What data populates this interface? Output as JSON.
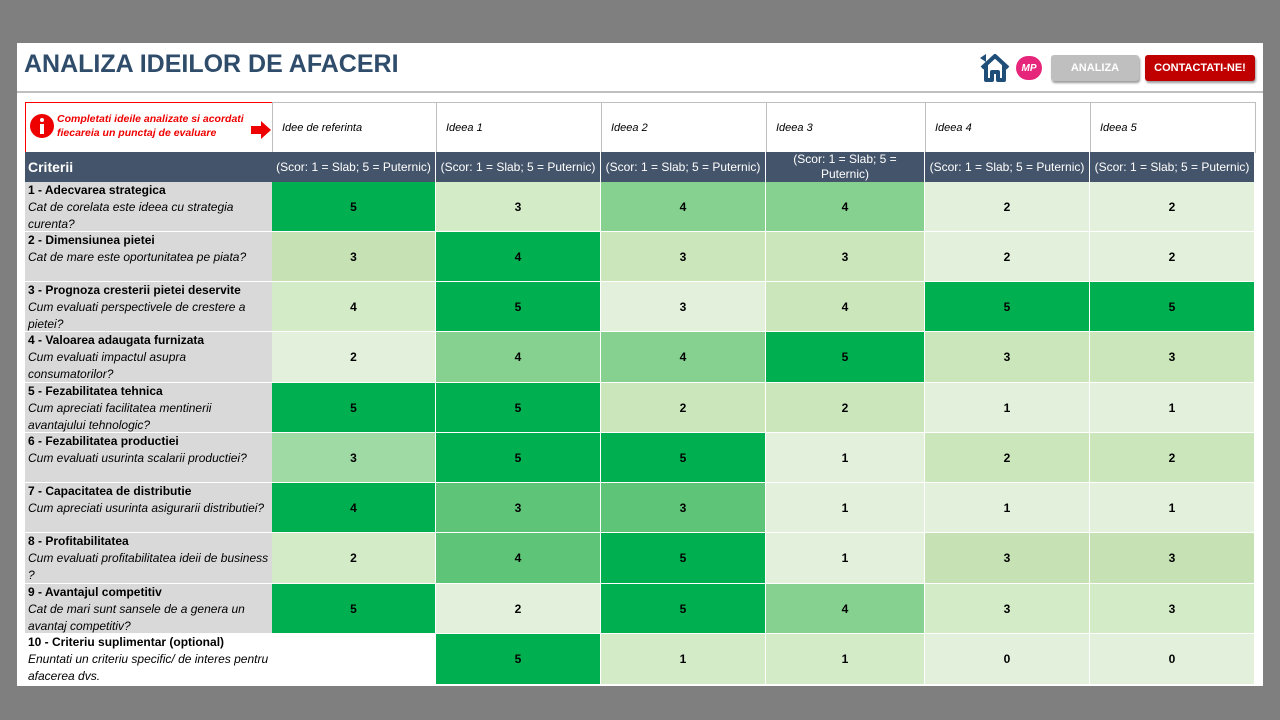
{
  "header": {
    "title": "ANALIZA IDEILOR DE AFACERI",
    "logo": "MP",
    "buttons": [
      "ANALIZA",
      "CONTACTATI-NE!"
    ]
  },
  "table": {
    "note": "Completati  ideile analizate si acordati fiecareia un punctaj de evaluare",
    "columns": [
      "Idee de referinta",
      "Ideea 1",
      "Ideea 2",
      "Ideea 3",
      "Ideea 4",
      "Ideea 5"
    ],
    "criteria_header": "Criterii",
    "scale_labels": [
      "(Scor: 1 = Slab; 5 = Puternic)",
      "(Scor: 1 = Slab; 5 = Puternic)",
      "(Scor: 1 = Slab; 5 = Puternic)",
      "(Scor: 1 = Slab; 5 = Puternic)",
      "(Scor: 1 = Slab; 5 = Puternic)",
      "(Scor: 1 = Slab; 5 = Puternic)"
    ],
    "rows": [
      {
        "title": "1 - Adecvarea strategica",
        "question": "Cat de corelata este ideea cu strategia curenta?",
        "scores": [
          5,
          3,
          4,
          4,
          2,
          2
        ],
        "colors": [
          "#00b050",
          "#d4ebc8",
          "#86d18f",
          "#86d18f",
          "#e3f1dc",
          "#e3f1dc"
        ]
      },
      {
        "title": "2 - Dimensiunea pietei",
        "question": "Cat de mare este oportunitatea pe piata?",
        "scores": [
          3,
          4,
          3,
          3,
          2,
          2
        ],
        "colors": [
          "#c6e2b4",
          "#00b050",
          "#cce6bc",
          "#cce6bc",
          "#e3f1dc",
          "#e3f1dc"
        ]
      },
      {
        "title": "3 - Prognoza cresterii pietei deservite",
        "question": "Cum evaluati perspectivele de crestere a pietei?",
        "scores": [
          4,
          5,
          3,
          4,
          5,
          5
        ],
        "colors": [
          "#d4ebc8",
          "#00b050",
          "#e3f1dc",
          "#cce6bc",
          "#00b050",
          "#00b050"
        ]
      },
      {
        "title": "4 - Valoarea adaugata furnizata",
        "question": "Cum evaluati impactul asupra consumatorilor?",
        "scores": [
          2,
          4,
          4,
          5,
          3,
          3
        ],
        "colors": [
          "#e3f1dc",
          "#86d18f",
          "#86d18f",
          "#00b050",
          "#cce6bc",
          "#cce6bc"
        ]
      },
      {
        "title": "5 - Fezabilitatea tehnica",
        "question": "Cum apreciati facilitatea mentinerii avantajului tehnologic?",
        "scores": [
          5,
          5,
          2,
          2,
          1,
          1
        ],
        "colors": [
          "#00b050",
          "#00b050",
          "#cce6bc",
          "#cce6bc",
          "#e3f1dc",
          "#e3f1dc"
        ]
      },
      {
        "title": "6 - Fezabilitatea productiei",
        "question": "Cum evaluati usurinta scalarii productiei?",
        "scores": [
          3,
          5,
          5,
          1,
          2,
          2
        ],
        "colors": [
          "#9fd9a3",
          "#00b050",
          "#00b050",
          "#e3f1dc",
          "#cce6bc",
          "#cce6bc"
        ]
      },
      {
        "title": "7 - Capacitatea de distributie",
        "question": "Cum apreciati usurinta asigurarii distributiei?",
        "scores": [
          4,
          3,
          3,
          1,
          1,
          1
        ],
        "colors": [
          "#00b050",
          "#5ec478",
          "#5ec478",
          "#e3f1dc",
          "#e3f1dc",
          "#e3f1dc"
        ]
      },
      {
        "title": "8 - Profitabilitatea",
        "question": "Cum evaluati profitabilitatea ideii de business ?",
        "scores": [
          2,
          4,
          5,
          1,
          3,
          3
        ],
        "colors": [
          "#d4ebc8",
          "#5ec478",
          "#00b050",
          "#e3f1dc",
          "#c6e2b4",
          "#c6e2b4"
        ]
      },
      {
        "title": "9 - Avantajul competitiv",
        "question": "Cat de mari sunt sansele de a genera un avantaj competitiv?",
        "scores": [
          5,
          2,
          5,
          4,
          3,
          3
        ],
        "colors": [
          "#00b050",
          "#e3f1dc",
          "#00b050",
          "#86d18f",
          "#d4ebc8",
          "#d4ebc8"
        ]
      },
      {
        "title": "10 - Criteriu suplimentar (optional)",
        "question": "Enuntati un criteriu specific/ de interes pentru afacerea dvs.",
        "scores": [
          null,
          5,
          1,
          1,
          0,
          0
        ],
        "colors": [
          "#ffffff",
          "#00b050",
          "#d4ebc8",
          "#d4ebc8",
          "#e3f1dc",
          "#e3f1dc"
        ]
      }
    ]
  }
}
